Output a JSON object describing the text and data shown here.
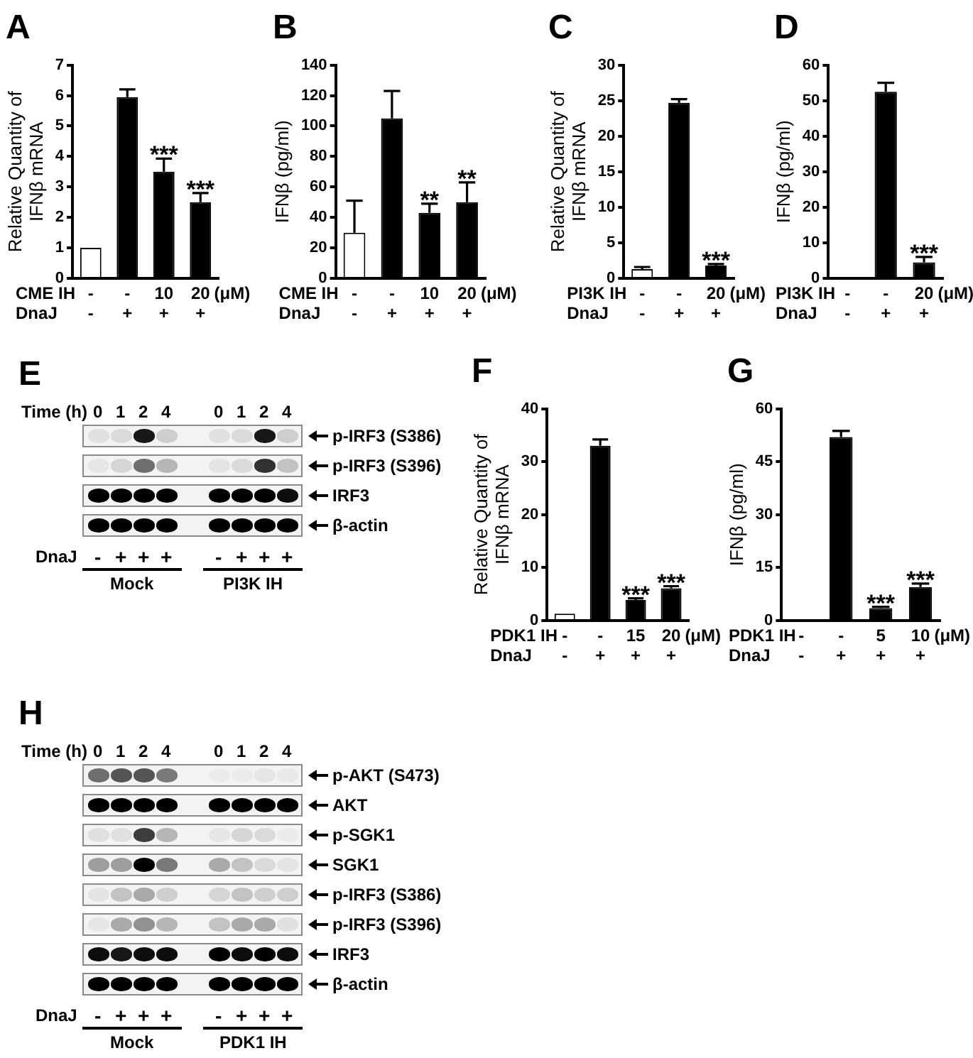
{
  "chart_data": [
    {
      "type": "bar",
      "title": "A",
      "ylabel": "Relative Quantity of\nIFNβ mRNA",
      "xlabel": "CME IH\nDnaJ",
      "categories": [
        "-\n-",
        "-\n+",
        "10\n+",
        "20\n+"
      ],
      "values": [
        1,
        5.95,
        3.5,
        2.5
      ],
      "colors": [
        "#ffffff",
        "#000000",
        "#000000",
        "#000000"
      ],
      "errors": [
        null,
        [
          5.95,
          6.2
        ],
        [
          3.5,
          3.93
        ],
        [
          2.5,
          2.8
        ]
      ],
      "ylim": [
        0,
        7
      ],
      "yticks": [
        0,
        1,
        2,
        3,
        4,
        5,
        6,
        7
      ],
      "annotations": [
        "(μM)",
        {
          "text": "***",
          "x": "10\n+",
          "y": 3.93
        },
        {
          "text": "***",
          "x": "20\n+",
          "y": 2.8
        }
      ]
    },
    {
      "type": "bar",
      "title": "B",
      "ylabel": "IFNβ (pg/ml)",
      "xlabel": "CME IH\nDnaJ",
      "categories": [
        "-\n-",
        "-\n+",
        "10\n+",
        "20\n+"
      ],
      "values": [
        30,
        105,
        43,
        50
      ],
      "colors": [
        "#ffffff",
        "#000000",
        "#000000",
        "#000000"
      ],
      "errors": [
        [
          30,
          51
        ],
        [
          105,
          123
        ],
        [
          43,
          49
        ],
        [
          50,
          63
        ]
      ],
      "ylim": [
        0,
        140
      ],
      "yticks": [
        0,
        20,
        40,
        60,
        80,
        100,
        120,
        140
      ],
      "annotations": [
        "(μM)",
        {
          "text": "**",
          "x": "10\n+",
          "y": 49
        },
        {
          "text": "**",
          "x": "20\n+",
          "y": 63
        }
      ]
    },
    {
      "type": "bar",
      "title": "C",
      "ylabel": "Relative Quantity of\nIFNβ mRNA",
      "xlabel": "PI3K IH\nDnaJ",
      "categories": [
        "-\n-",
        "-\n+",
        "20\n+"
      ],
      "values": [
        1.3,
        24.7,
        1.8
      ],
      "colors": [
        "#ffffff",
        "#000000",
        "#000000"
      ],
      "errors": [
        [
          1.3,
          1.6
        ],
        [
          24.7,
          25.2
        ],
        [
          1.8,
          2.0
        ]
      ],
      "ylim": [
        0,
        30
      ],
      "yticks": [
        0,
        5,
        10,
        15,
        20,
        25,
        30
      ],
      "annotations": [
        "(μM)",
        {
          "text": "***",
          "x": "20\n+",
          "y": 2.0
        }
      ]
    },
    {
      "type": "bar",
      "title": "D",
      "ylabel": "IFNβ (pg/ml)",
      "xlabel": "PI3K IH\nDnaJ",
      "categories": [
        "-\n-",
        "-\n+",
        "20\n+"
      ],
      "values": [
        0,
        52.5,
        4.5
      ],
      "colors": [
        "#ffffff",
        "#000000",
        "#000000"
      ],
      "errors": [
        null,
        [
          52.5,
          55
        ],
        [
          4.5,
          6
        ]
      ],
      "ylim": [
        0,
        60
      ],
      "yticks": [
        0,
        10,
        20,
        30,
        40,
        50,
        60
      ],
      "annotations": [
        "(μM)",
        {
          "text": "***",
          "x": "20\n+",
          "y": 6
        }
      ]
    },
    {
      "type": "other",
      "title": "E",
      "xlabel": "Time (h)",
      "categories": [
        "0",
        "1",
        "2",
        "4",
        "0",
        "1",
        "2",
        "4"
      ],
      "y_categories": [
        "p-IRF3 (S386)",
        "p-IRF3 (S396)",
        "IRF3",
        "β-actin"
      ],
      "annotations": [
        "DnaJ",
        "-",
        "+",
        "+",
        "+",
        "-",
        "+",
        "+",
        "+",
        "Mock",
        "PI3K IH"
      ]
    },
    {
      "type": "bar",
      "title": "F",
      "ylabel": "Relative Quantity of\nIFNβ mRNA",
      "xlabel": "PDK1 IH\nDnaJ",
      "categories": [
        "-\n-",
        "-\n+",
        "15\n+",
        "20\n+"
      ],
      "values": [
        1.3,
        33,
        3.9,
        6.1
      ],
      "colors": [
        "#ffffff",
        "#000000",
        "#000000",
        "#000000"
      ],
      "errors": [
        null,
        [
          33,
          34.2
        ],
        [
          3.9,
          4.2
        ],
        [
          6.1,
          6.5
        ]
      ],
      "ylim": [
        0,
        40
      ],
      "yticks": [
        0,
        10,
        20,
        30,
        40
      ],
      "annotations": [
        "(μM)",
        {
          "text": "***",
          "x": "15\n+",
          "y": 4.2
        },
        {
          "text": "***",
          "x": "20\n+",
          "y": 6.5
        }
      ]
    },
    {
      "type": "bar",
      "title": "G",
      "ylabel": "IFNβ (pg/ml)",
      "xlabel": "PDK1 IH\nDnaJ",
      "categories": [
        "-\n-",
        "-\n+",
        "5\n+",
        "10\n+"
      ],
      "values": [
        0,
        52,
        3.5,
        9.5
      ],
      "colors": [
        "#ffffff",
        "#000000",
        "#000000",
        "#000000"
      ],
      "errors": [
        null,
        [
          52,
          53.7
        ],
        [
          3.5,
          3.9
        ],
        [
          9.5,
          10.5
        ]
      ],
      "ylim": [
        0,
        60
      ],
      "yticks": [
        0,
        15,
        30,
        45,
        60
      ],
      "annotations": [
        "(μM)",
        {
          "text": "***",
          "x": "5\n+",
          "y": 3.9
        },
        {
          "text": "***",
          "x": "10\n+",
          "y": 10.5
        }
      ]
    },
    {
      "type": "other",
      "title": "H",
      "xlabel": "Time (h)",
      "categories": [
        "0",
        "1",
        "2",
        "4",
        "0",
        "1",
        "2",
        "4"
      ],
      "y_categories": [
        "p-AKT (S473)",
        "AKT",
        "p-SGK1",
        "SGK1",
        "p-IRF3 (S386)",
        "p-IRF3 (S396)",
        "IRF3",
        "β-actin"
      ],
      "annotations": [
        "DnaJ",
        "-",
        "+",
        "+",
        "+",
        "-",
        "+",
        "+",
        "+",
        "Mock",
        "PDK1 IH"
      ]
    }
  ]
}
